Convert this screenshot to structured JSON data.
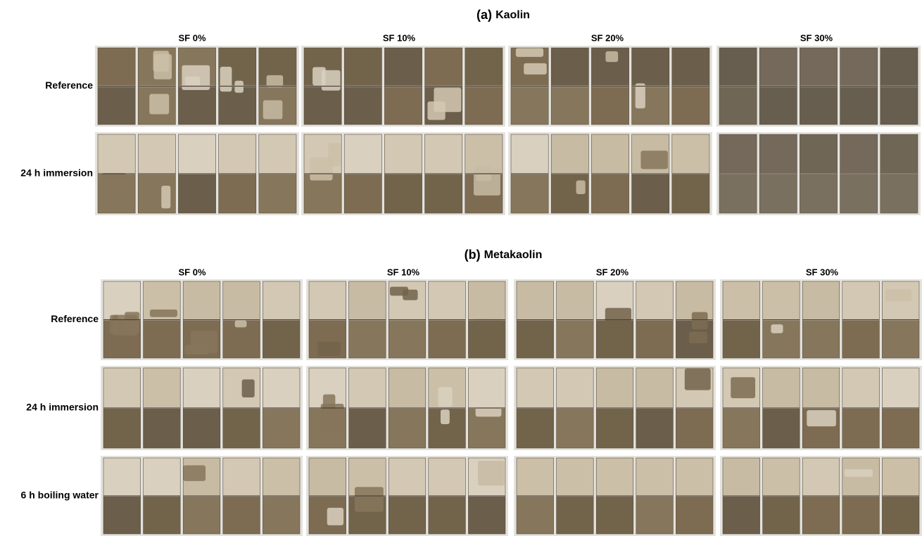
{
  "sections": [
    {
      "label": "(a)",
      "name": "Kaolin",
      "columns": [
        "SF 0%",
        "SF 10%",
        "SF 20%",
        "SF 30%"
      ],
      "rows": [
        "Reference",
        "24 h immersion"
      ]
    },
    {
      "label": "(b)",
      "name": "Metakaolin",
      "columns": [
        "SF 0%",
        "SF 10%",
        "SF 20%",
        "SF 30%"
      ],
      "rows": [
        "Reference",
        "24 h immersion",
        "6 h boiling water"
      ]
    }
  ]
}
